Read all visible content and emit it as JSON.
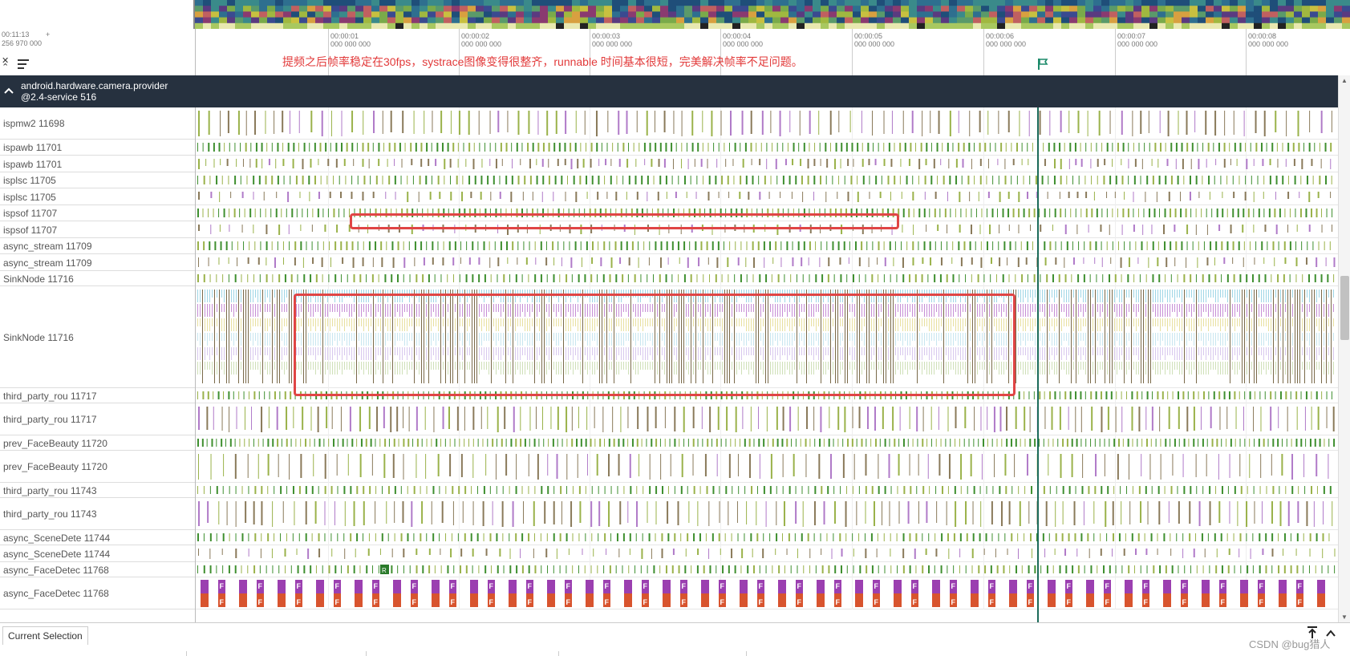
{
  "header": {
    "time_offset_line1": "00:11:13",
    "time_offset_line2": "256 970 000",
    "plus_label": "+",
    "annotation": "提频之后帧率稳定在30fps，systrace图像变得很整齐，runnable 时间基本很短，完美解决帧率不足问题。",
    "ticks": [
      {
        "time": "00:00:01",
        "sub": "000 000 000"
      },
      {
        "time": "00:00:02",
        "sub": "000 000 000"
      },
      {
        "time": "00:00:03",
        "sub": "000 000 000"
      },
      {
        "time": "00:00:04",
        "sub": "000 000 000"
      },
      {
        "time": "00:00:05",
        "sub": "000 000 000"
      },
      {
        "time": "00:00:06",
        "sub": "000 000 000"
      },
      {
        "time": "00:00:07",
        "sub": "000 000 000"
      },
      {
        "time": "00:00:08",
        "sub": "000 000 000"
      }
    ]
  },
  "group": {
    "title_line1": "android.hardware.camera.provider",
    "title_line2": "@2.4-service 516"
  },
  "tracks": [
    {
      "label": "ispmw2 11698",
      "kind": "slices"
    },
    {
      "label": "ispawb 11701",
      "kind": "state"
    },
    {
      "label": "ispawb 11701",
      "kind": "slices"
    },
    {
      "label": "isplsc 11705",
      "kind": "state"
    },
    {
      "label": "isplsc 11705",
      "kind": "slices"
    },
    {
      "label": "ispsof 11707",
      "kind": "state"
    },
    {
      "label": "ispsof 11707",
      "kind": "slices"
    },
    {
      "label": "async_stream 11709",
      "kind": "state"
    },
    {
      "label": "async_stream 11709",
      "kind": "slices"
    },
    {
      "label": "SinkNode 11716",
      "kind": "state"
    },
    {
      "label": "SinkNode 11716",
      "kind": "tall"
    },
    {
      "label": "third_party_rou 11717",
      "kind": "state"
    },
    {
      "label": "third_party_rou 11717",
      "kind": "slices"
    },
    {
      "label": "prev_FaceBeauty 11720",
      "kind": "state"
    },
    {
      "label": "prev_FaceBeauty 11720",
      "kind": "slices"
    },
    {
      "label": "third_party_rou 11743",
      "kind": "state"
    },
    {
      "label": "third_party_rou 11743",
      "kind": "slices"
    },
    {
      "label": "async_SceneDete 11744",
      "kind": "state"
    },
    {
      "label": "async_SceneDete 11744",
      "kind": "slices"
    },
    {
      "label": "async_FaceDetec 11768",
      "kind": "state"
    },
    {
      "label": "async_FaceDetec 11768",
      "kind": "frames"
    }
  ],
  "frame_marker_letter": "F",
  "runnable_marker_letter": "R",
  "bottom": {
    "tab_current_selection": "Current Selection",
    "watermark": "CSDN @bug猎人"
  },
  "icons": {
    "collapse": "collapse-all-icon",
    "sort": "sort-icon",
    "flag": "flag-icon",
    "chevron": "chevron-up-icon",
    "pin": "pin-icon",
    "expand": "expand-panel-icon"
  },
  "colors": {
    "group_header_bg": "#26313f",
    "annotation": "#e23a3a",
    "highlight_box": "#e04545",
    "cursor": "#1c6b5a",
    "running": "#3f8f2f",
    "slice_a": "#9ab24a",
    "slice_b": "#8a7a5a",
    "slice_c": "#b07ac8",
    "frame_purple": "#9b3fb0",
    "frame_orange": "#d8542e"
  }
}
